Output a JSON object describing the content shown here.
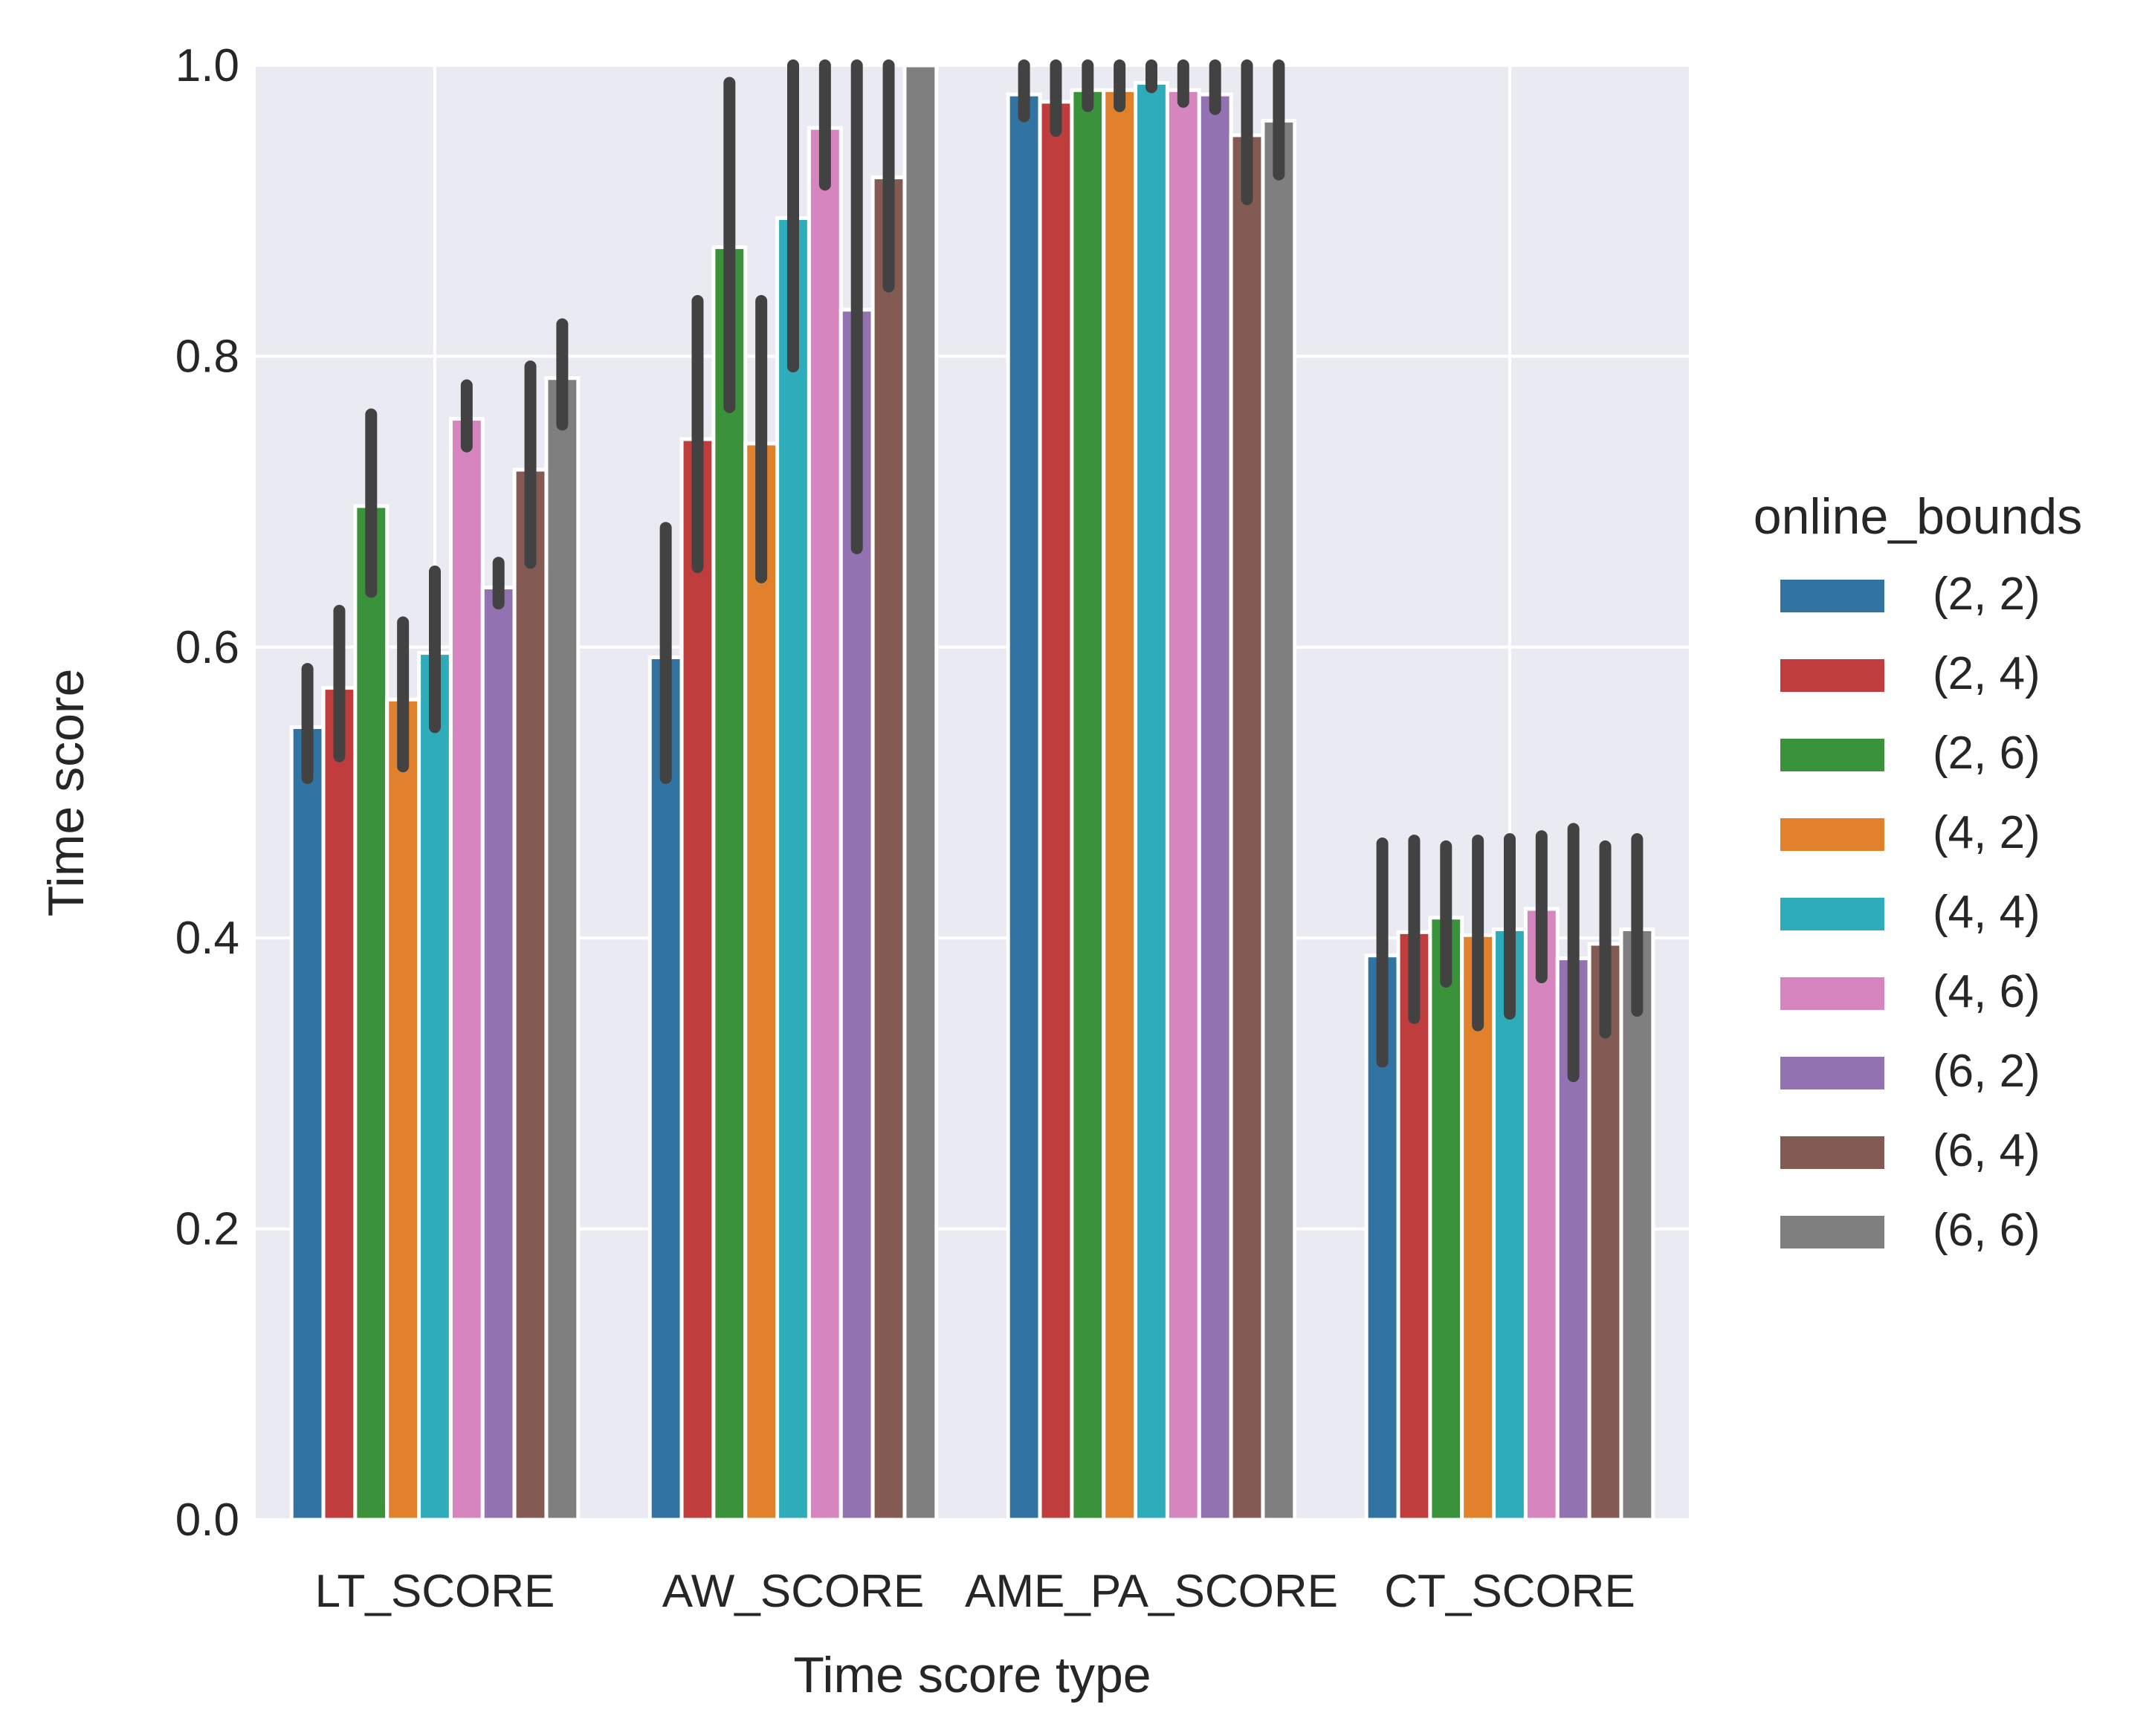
{
  "chart_data": {
    "type": "bar",
    "title": "",
    "xlabel": "Time score type",
    "ylabel": "Time score",
    "ylim": [
      0.0,
      1.0
    ],
    "yticks": [
      "0.0",
      "0.2",
      "0.4",
      "0.6",
      "0.8",
      "1.0"
    ],
    "grid": true,
    "legend": {
      "title": "online_bounds",
      "placement": "right"
    },
    "categories": [
      "LT_SCORE",
      "AW_SCORE",
      "AME_PA_SCORE",
      "CT_SCORE"
    ],
    "category_labels": [
      "LT_SCORE",
      "AW_SCORE",
      "AME_PA_SCORE",
      "CT_SCORE"
    ],
    "series": [
      {
        "name": "(2, 2)",
        "color": "#3274a1",
        "values": [
          0.545,
          0.593,
          0.98,
          0.388
        ],
        "err_low": [
          0.51,
          0.51,
          0.965,
          0.315
        ],
        "err_high": [
          0.585,
          0.682,
          1.0,
          0.465
        ]
      },
      {
        "name": "(2, 4)",
        "color": "#c03d3e",
        "values": [
          0.572,
          0.743,
          0.975,
          0.404
        ],
        "err_low": [
          0.525,
          0.655,
          0.955,
          0.345
        ],
        "err_high": [
          0.625,
          0.838,
          1.0,
          0.467
        ]
      },
      {
        "name": "(2, 6)",
        "color": "#3a923a",
        "values": [
          0.697,
          0.875,
          0.983,
          0.414
        ],
        "err_low": [
          0.638,
          0.765,
          0.972,
          0.37
        ],
        "err_high": [
          0.76,
          0.988,
          1.0,
          0.463
        ]
      },
      {
        "name": "(4, 2)",
        "color": "#e1812c",
        "values": [
          0.564,
          0.74,
          0.983,
          0.402
        ],
        "err_low": [
          0.518,
          0.648,
          0.972,
          0.34
        ],
        "err_high": [
          0.617,
          0.838,
          1.0,
          0.467
        ]
      },
      {
        "name": "(4, 4)",
        "color": "#2eacba",
        "values": [
          0.596,
          0.895,
          0.988,
          0.406
        ],
        "err_low": [
          0.545,
          0.793,
          0.985,
          0.348
        ],
        "err_high": [
          0.652,
          1.0,
          1.0,
          0.468
        ]
      },
      {
        "name": "(4, 6)",
        "color": "#d685be",
        "values": [
          0.757,
          0.957,
          0.983,
          0.42
        ],
        "err_low": [
          0.738,
          0.918,
          0.975,
          0.373
        ],
        "err_high": [
          0.78,
          1.0,
          1.0,
          0.47
        ]
      },
      {
        "name": "(6, 2)",
        "color": "#9372b2",
        "values": [
          0.641,
          0.832,
          0.98,
          0.386
        ],
        "err_low": [
          0.63,
          0.668,
          0.97,
          0.305
        ],
        "err_high": [
          0.658,
          1.0,
          1.0,
          0.475
        ]
      },
      {
        "name": "(6, 4)",
        "color": "#845b53",
        "values": [
          0.722,
          0.923,
          0.952,
          0.396
        ],
        "err_low": [
          0.658,
          0.848,
          0.908,
          0.335
        ],
        "err_high": [
          0.793,
          1.0,
          1.0,
          0.463
        ]
      },
      {
        "name": "(6, 6)",
        "color": "#7f7f7f",
        "values": [
          0.785,
          1.0,
          0.962,
          0.406
        ],
        "err_low": [
          0.753,
          1.0,
          0.925,
          0.35
        ],
        "err_high": [
          0.822,
          1.0,
          1.0,
          0.468
        ]
      }
    ],
    "colors": {
      "plot_background": "#eaeaf2",
      "grid": "#ffffff",
      "error_bar": "#424242",
      "text": "#262626"
    }
  }
}
